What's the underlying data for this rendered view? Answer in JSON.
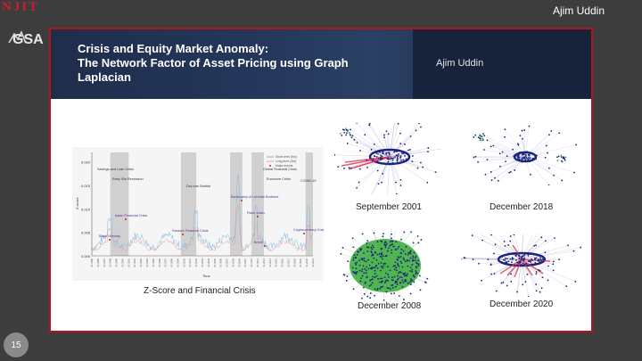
{
  "header": {
    "author": "Ajim Uddin"
  },
  "footer": {
    "page_number": "15"
  },
  "logos": {
    "njit": "NJIT",
    "gsa": "GSA"
  },
  "slide": {
    "title_lines": [
      "Crisis and Equity Market Anomaly:",
      "The Network Factor of Asset Pricing using Graph",
      "Laplacian"
    ],
    "author": "Ajim Uddin",
    "captions": {
      "chart": "Z-Score and Financial Crisis",
      "net1": "September 2001",
      "net2": "December 2018",
      "net3": "December 2008",
      "net4": "December 2020"
    }
  },
  "chart_data": {
    "type": "line",
    "ylabel": "Z-score",
    "xlabel": "Time",
    "ylim": [
      0.0,
      0.022
    ],
    "yticks": [
      "0.020",
      "0.015",
      "0.010",
      "0.005",
      "0.000"
    ],
    "legend": [
      "Short term (5m)",
      "Long term (3m)",
      "Major events"
    ],
    "annotations": [
      "Savings and Loan Crisis",
      "Early 90s Recession",
      "Dot-com Bubble",
      "Global Financial Crisis",
      "Eurozone Crisis",
      "COVID-19",
      "Bankruptcy of Lehman Brothers",
      "Asian Financial Crisis",
      "Russian Financial Crisis",
      "Black Monday",
      "Brexit",
      "Flash crash",
      "Cryptocurrency Crash"
    ],
    "shaded_periods": [
      [
        1988,
        1991
      ],
      [
        1999.5,
        2002
      ],
      [
        2007.5,
        2009.5
      ],
      [
        2011,
        2013
      ],
      [
        2019.8,
        2021
      ]
    ],
    "x_start": 1985,
    "x_end": 2021
  },
  "colors": {
    "accent": "#b3141e",
    "header": "#1e2d4a",
    "node": "#1a237e",
    "edge_green": "#3fae3f",
    "edge_red": "#e0305a"
  }
}
